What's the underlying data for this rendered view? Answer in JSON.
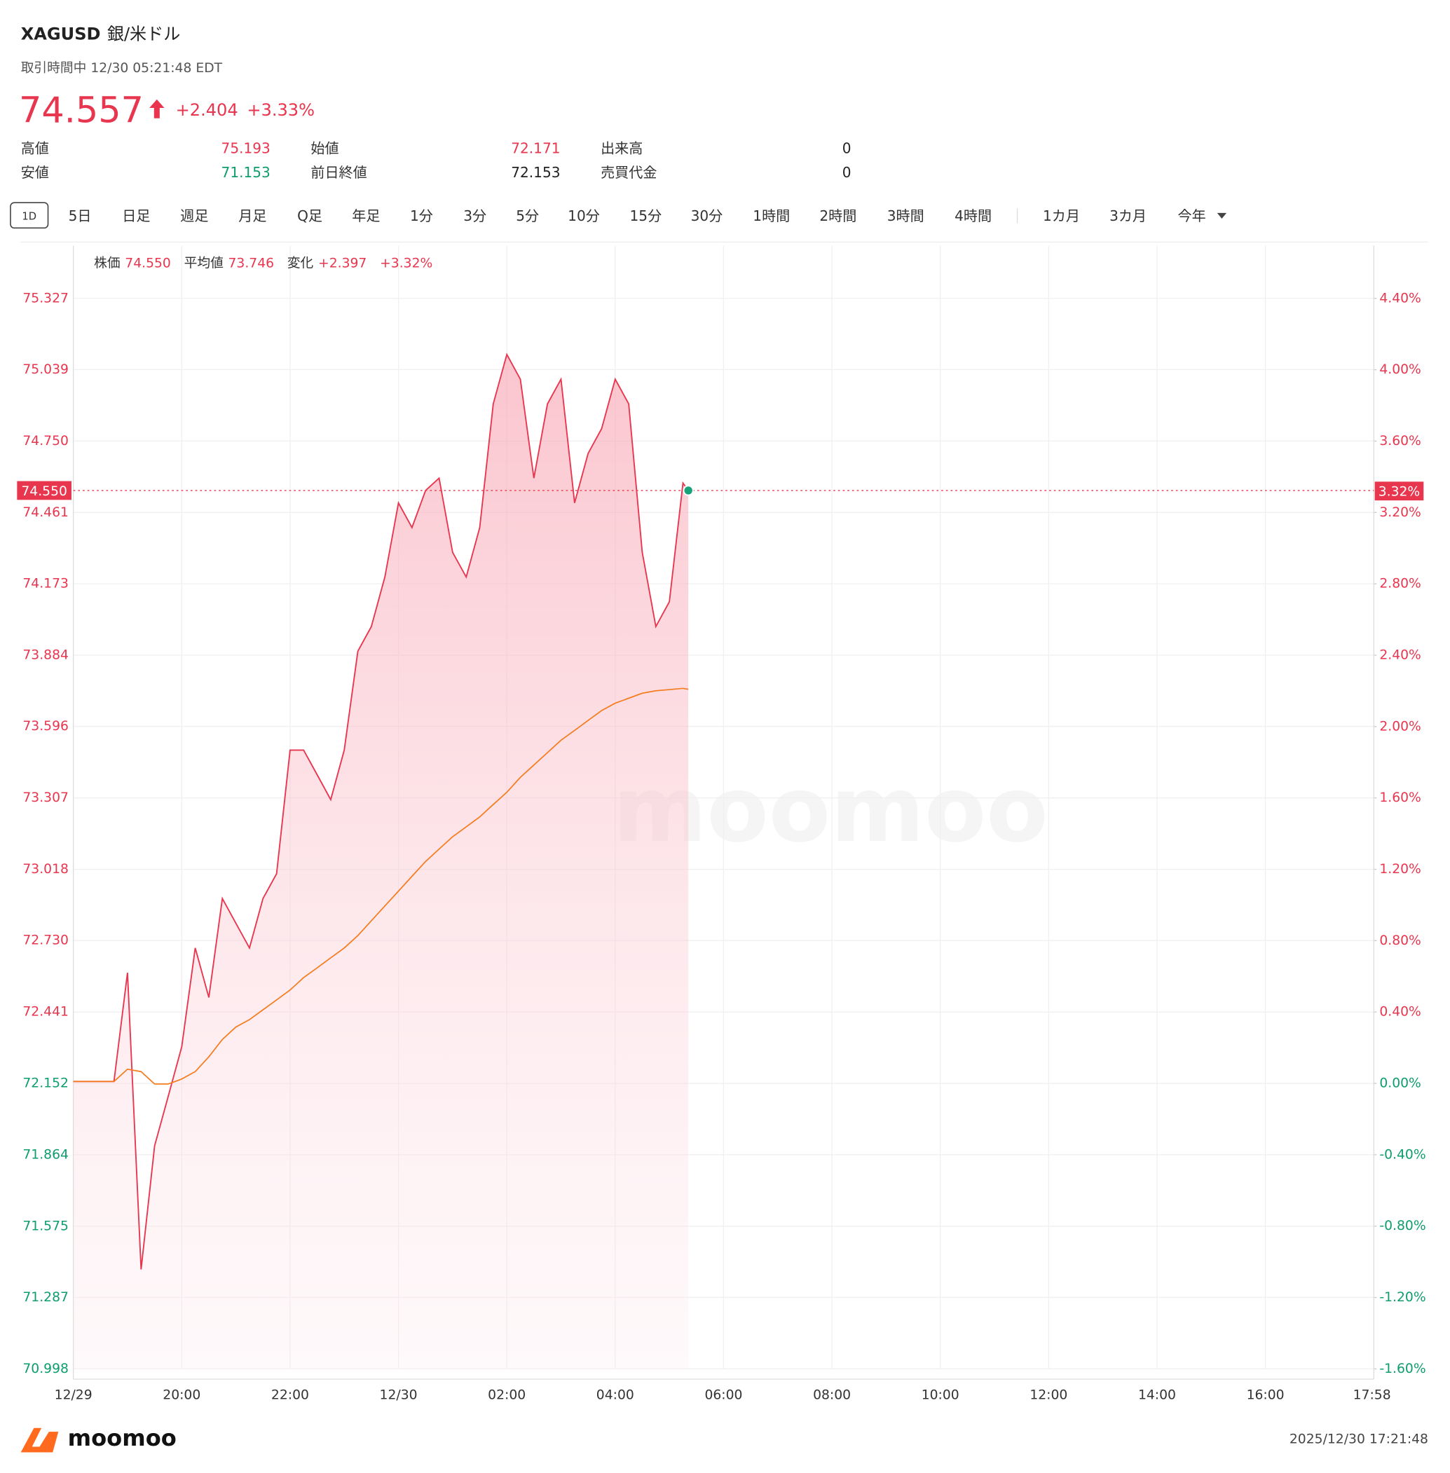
{
  "header": {
    "symbol": "XAGUSD",
    "name": "銀/米ドル",
    "status": "取引時間中 12/30 05:21:48 EDT",
    "price": "74.557",
    "change": "+2.404",
    "change_pct": "+3.33%",
    "stats": [
      [
        {
          "label": "高値",
          "value": "75.193",
          "color": "#e8364f"
        },
        {
          "label": "始値",
          "value": "72.171",
          "color": "#e8364f"
        },
        {
          "label": "出来高",
          "value": "0",
          "color": "#222222"
        }
      ],
      [
        {
          "label": "安値",
          "value": "71.153",
          "color": "#0f9d6e"
        },
        {
          "label": "前日終値",
          "value": "72.153",
          "color": "#222222"
        },
        {
          "label": "売買代金",
          "value": "0",
          "color": "#222222"
        }
      ]
    ]
  },
  "tabs": [
    "1D",
    "5日",
    "日足",
    "週足",
    "月足",
    "Q足",
    "年足",
    "1分",
    "3分",
    "5分",
    "10分",
    "15分",
    "30分",
    "1時間",
    "2時間",
    "3時間",
    "4時間",
    "1カ月",
    "3カ月",
    "今年"
  ],
  "chart_data": {
    "type": "line",
    "legend": [
      {
        "label": "株価",
        "value": "74.550"
      },
      {
        "label": "平均値",
        "value": "73.746"
      },
      {
        "label": "変化",
        "value": "+2.397"
      },
      {
        "label": "",
        "value": "+3.32%"
      }
    ],
    "x": [
      "18:00",
      "18:15",
      "18:30",
      "18:45",
      "19:00",
      "19:15",
      "19:30",
      "19:45",
      "20:00",
      "20:15",
      "20:30",
      "20:45",
      "21:00",
      "21:15",
      "21:30",
      "21:45",
      "22:00",
      "22:15",
      "22:30",
      "22:45",
      "23:00",
      "23:15",
      "23:30",
      "23:45",
      "00:00",
      "00:15",
      "00:30",
      "00:45",
      "01:00",
      "01:15",
      "01:30",
      "01:45",
      "02:00",
      "02:15",
      "02:30",
      "02:45",
      "03:00",
      "03:15",
      "03:30",
      "03:45",
      "04:00",
      "04:15",
      "04:30",
      "04:45",
      "05:00",
      "05:15",
      "05:21"
    ],
    "series": [
      {
        "name": "株価",
        "color": "#e8364f",
        "values": [
          72.16,
          72.16,
          72.16,
          72.16,
          72.6,
          71.4,
          71.9,
          72.1,
          72.3,
          72.7,
          72.5,
          72.9,
          72.8,
          72.7,
          72.9,
          73.0,
          73.5,
          73.5,
          73.4,
          73.3,
          73.5,
          73.9,
          74.0,
          74.2,
          74.5,
          74.4,
          74.55,
          74.6,
          74.3,
          74.2,
          74.4,
          74.9,
          75.1,
          75.0,
          74.6,
          74.9,
          75.0,
          74.5,
          74.7,
          74.8,
          75.0,
          74.9,
          74.3,
          74.0,
          74.1,
          74.58,
          74.55
        ]
      },
      {
        "name": "平均値",
        "color": "#f57c1f",
        "values": [
          72.16,
          72.16,
          72.16,
          72.16,
          72.21,
          72.2,
          72.15,
          72.15,
          72.17,
          72.2,
          72.26,
          72.33,
          72.38,
          72.41,
          72.45,
          72.49,
          72.53,
          72.58,
          72.62,
          72.66,
          72.7,
          72.75,
          72.81,
          72.87,
          72.93,
          72.99,
          73.05,
          73.1,
          73.15,
          73.19,
          73.23,
          73.28,
          73.33,
          73.39,
          73.44,
          73.49,
          73.54,
          73.58,
          73.62,
          73.66,
          73.69,
          73.71,
          73.73,
          73.74,
          73.745,
          73.75,
          73.746
        ]
      }
    ],
    "last_price": {
      "value": 74.55,
      "label": "74.550"
    },
    "last_pct": {
      "value": 3.32,
      "label": "3.32%"
    },
    "prev_close": 72.153,
    "up_color": "#e8364f",
    "down_color": "#0f9d6e",
    "dot_color": "#16a37a",
    "ylim": [
      70.998,
      75.327
    ],
    "yticks": [
      70.998,
      71.287,
      71.575,
      71.864,
      72.152,
      72.441,
      {
        "value": 72.73,
        "label": "72.730"
      },
      73.018,
      73.307,
      73.596,
      73.884,
      74.173,
      74.461,
      {
        "value": 74.75,
        "label": "74.750"
      },
      75.039,
      75.327
    ],
    "y2lim": [
      -1.6,
      4.4
    ],
    "y2ticks": [
      {
        "value": -1.6,
        "label": "-1.60%"
      },
      {
        "value": -1.2,
        "label": "-1.20%"
      },
      {
        "value": -0.8,
        "label": "-0.80%"
      },
      {
        "value": -0.4,
        "label": "-0.40%"
      },
      {
        "value": 0,
        "label": "0.00%"
      },
      {
        "value": 0.4,
        "label": "0.40%"
      },
      {
        "value": 0.8,
        "label": "0.80%"
      },
      {
        "value": 1.2,
        "label": "1.20%"
      },
      {
        "value": 1.6,
        "label": "1.60%"
      },
      {
        "value": 2.0,
        "label": "2.00%"
      },
      {
        "value": 2.4,
        "label": "2.40%"
      },
      {
        "value": 2.8,
        "label": "2.80%"
      },
      {
        "value": 3.2,
        "label": "3.20%"
      },
      {
        "value": 3.6,
        "label": "3.60%"
      },
      {
        "value": 4.0,
        "label": "4.00%"
      },
      {
        "value": 4.4,
        "label": "4.40%"
      }
    ],
    "xlim": [
      "18:00",
      "17:58"
    ],
    "xticks": [
      {
        "value": "18:00",
        "label": "12/29"
      },
      "20:00",
      "22:00",
      {
        "value": "00:00",
        "label": "12/30"
      },
      "02:00",
      "04:00",
      "06:00",
      "08:00",
      "10:00",
      "12:00",
      "14:00",
      "16:00",
      "17:58"
    ],
    "grid": true,
    "watermark": "moomoo"
  },
  "footer": {
    "brand": "moomoo",
    "timestamp": "2025/12/30 17:21:48"
  }
}
